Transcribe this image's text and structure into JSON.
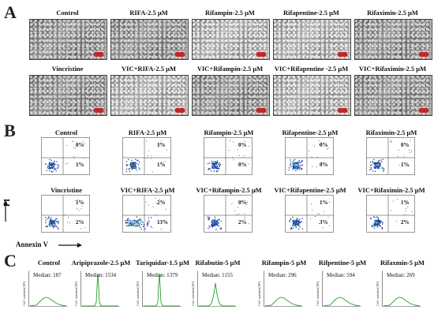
{
  "panels": {
    "a": "A",
    "b": "B",
    "c": "C"
  },
  "panel_a": {
    "row1": [
      "Control",
      "RIFA-2.5 μM",
      "Rifampin-2.5 μM",
      "Rifapentine-2.5 μM",
      "Rifaximin-2.5 μM"
    ],
    "row2": [
      "Vincristine",
      "VIC+RIFA-2.5 μM",
      "VIC+Rifampin-2.5 μM",
      "VIC+Rifapentine -2.5 μM",
      "VIC+Rifaximin-2.5 μM"
    ]
  },
  "panel_b": {
    "row1": [
      {
        "title": "Control",
        "upper": "0%",
        "lower": "1%"
      },
      {
        "title": "RIFA-2.5 μM",
        "upper": "1%",
        "lower": "1%"
      },
      {
        "title": "Rifampin-2.5 μM",
        "upper": "0%",
        "lower": "0%"
      },
      {
        "title": "Rifapentine-2.5 μM",
        "upper": "0%",
        "lower": "0%"
      },
      {
        "title": "Rifaximin-2.5 μM",
        "upper": "0%",
        "lower": "1%"
      }
    ],
    "row2": [
      {
        "title": "Vincristine",
        "upper": "1%",
        "lower": "2%"
      },
      {
        "title": "VIC+RIFA-2.5 μM",
        "upper": "2%",
        "lower": "13%"
      },
      {
        "title": "VIC+Rifampin-2.5 μM",
        "upper": "0%",
        "lower": "2%"
      },
      {
        "title": "VIC+Rifapentine-2.5 μM",
        "upper": "1%",
        "lower": "3%"
      },
      {
        "title": "VIC+Rifaximin-2.5 μM",
        "upper": "1%",
        "lower": "2%"
      }
    ],
    "y_axis": "PI",
    "x_axis": "Annexin V"
  },
  "panel_c": {
    "y_label": "Cell number(10³)",
    "items": [
      {
        "title": "Control",
        "median": "Median: 187"
      },
      {
        "title": "Aripiprazole-2.5 μM",
        "median": "Median: 1534"
      },
      {
        "title": "Tariquidar-1.5 μM",
        "median": "Median: 1379"
      },
      {
        "title": "Rifabutin-5 μM",
        "median": "Median: 1155"
      },
      {
        "title": "Rifampin-5 μM",
        "median": "Median: 296"
      },
      {
        "title": "Rifpentine-5 μM",
        "median": "Median: 594"
      },
      {
        "title": "Rifaxmin-5 μM",
        "median": "Median: 269"
      }
    ]
  },
  "colors": {
    "hist_line": "#2aa02a",
    "dot_core": "#1c8f3a",
    "dot_mid": "#2b6bd6",
    "dot_outer": "#1a2a8a",
    "scalebar": "#c0282a"
  }
}
